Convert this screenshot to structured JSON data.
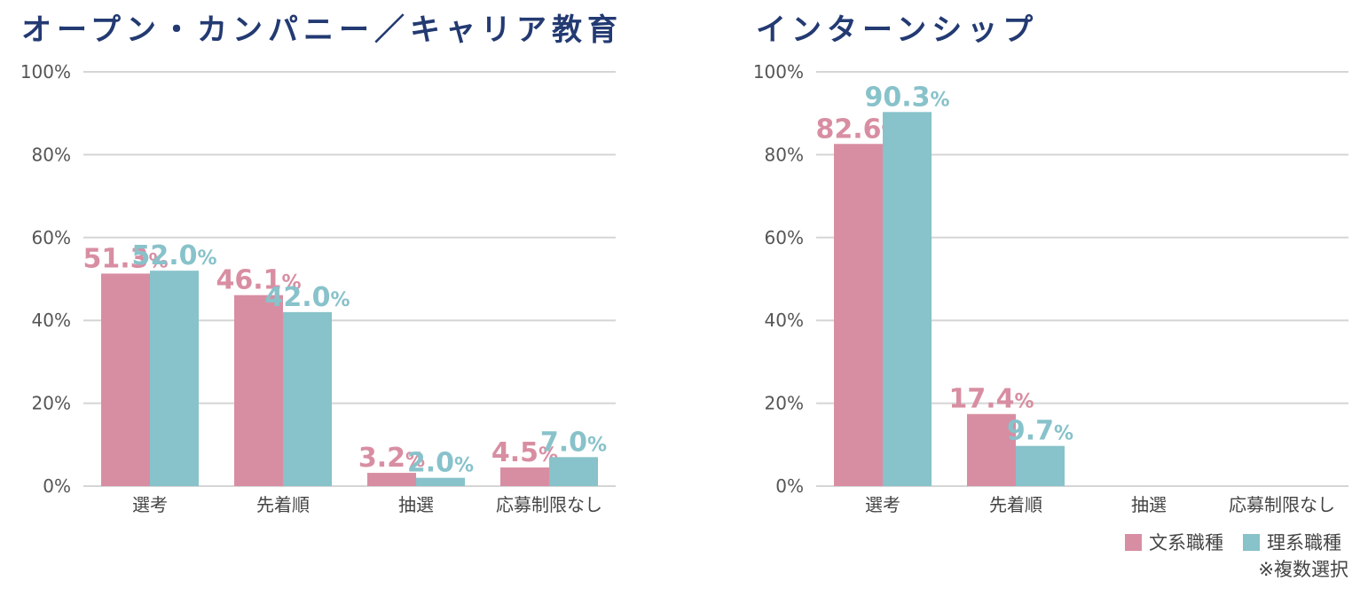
{
  "colors": {
    "bunkei": "#d88ea2",
    "rikei": "#88c2ca",
    "title": "#233a72",
    "grid": "#d5d5d5"
  },
  "legend": {
    "bunkei_label": "文系職種",
    "rikei_label": "理系職種"
  },
  "note": "※複数選択",
  "chart_data": [
    {
      "type": "bar",
      "title": "オープン・カンパニー／キャリア教育",
      "categories": [
        "選考",
        "先着順",
        "抽選",
        "応募制限なし"
      ],
      "series": [
        {
          "name": "文系職種",
          "values": [
            51.3,
            46.1,
            3.2,
            4.5
          ]
        },
        {
          "name": "理系職種",
          "values": [
            52.0,
            42.0,
            2.0,
            7.0
          ]
        }
      ],
      "ylim": [
        0,
        100
      ],
      "yticks": [
        "0%",
        "20%",
        "40%",
        "60%",
        "80%",
        "100%"
      ],
      "xlabel": "",
      "ylabel": "",
      "grid": true
    },
    {
      "type": "bar",
      "title": "インターンシップ",
      "categories": [
        "選考",
        "先着順",
        "抽選",
        "応募制限なし"
      ],
      "series": [
        {
          "name": "文系職種",
          "values": [
            82.6,
            17.4,
            null,
            null
          ]
        },
        {
          "name": "理系職種",
          "values": [
            90.3,
            9.7,
            null,
            null
          ]
        }
      ],
      "ylim": [
        0,
        100
      ],
      "yticks": [
        "0%",
        "20%",
        "40%",
        "60%",
        "80%",
        "100%"
      ],
      "xlabel": "",
      "ylabel": "",
      "grid": true
    }
  ]
}
